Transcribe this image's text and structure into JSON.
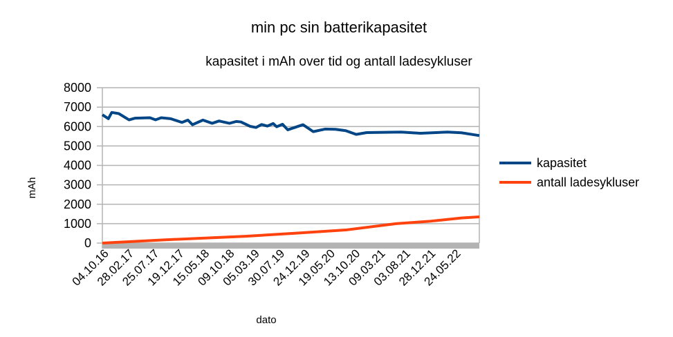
{
  "chart_data": {
    "type": "line",
    "title": "min pc sin batterikapasitet",
    "subtitle": "kapasitet i mAh over tid og antall ladesykluser",
    "xlabel": "dato",
    "ylabel": "mAh",
    "ylim": [
      0,
      8000
    ],
    "yticks": [
      0,
      1000,
      2000,
      3000,
      4000,
      5000,
      6000,
      7000,
      8000
    ],
    "xlim": [
      "2016-10-04",
      "2022-10-17"
    ],
    "xtick_labels": [
      "04.10.16",
      "28.02.17",
      "25.07.17",
      "19.12.17",
      "15.05.18",
      "09.10.18",
      "05.03.19",
      "30.07.19",
      "24.12.19",
      "19.05.20",
      "13.10.20",
      "09.03.21",
      "03.08.21",
      "28.12.21",
      "24.05.22"
    ],
    "grid": true,
    "legend_position": "right",
    "series": [
      {
        "name": "kapasitet",
        "color": "#004586",
        "points": [
          [
            "2016-10-04",
            6607
          ],
          [
            "2016-11-08",
            6405
          ],
          [
            "2016-11-28",
            6726
          ],
          [
            "2017-01-08",
            6667
          ],
          [
            "2017-03-09",
            6345
          ],
          [
            "2017-04-12",
            6429
          ],
          [
            "2017-07-09",
            6452
          ],
          [
            "2017-08-11",
            6345
          ],
          [
            "2017-09-13",
            6452
          ],
          [
            "2017-11-07",
            6405
          ],
          [
            "2018-01-12",
            6214
          ],
          [
            "2018-02-16",
            6333
          ],
          [
            "2018-03-15",
            6095
          ],
          [
            "2018-05-15",
            6333
          ],
          [
            "2018-07-08",
            6167
          ],
          [
            "2018-08-17",
            6286
          ],
          [
            "2018-10-17",
            6167
          ],
          [
            "2018-11-26",
            6262
          ],
          [
            "2018-12-23",
            6238
          ],
          [
            "2019-02-15",
            6012
          ],
          [
            "2019-03-21",
            5952
          ],
          [
            "2019-04-23",
            6107
          ],
          [
            "2019-05-27",
            6024
          ],
          [
            "2019-06-30",
            6155
          ],
          [
            "2019-07-20",
            5988
          ],
          [
            "2019-08-23",
            6119
          ],
          [
            "2019-09-23",
            5833
          ],
          [
            "2019-12-21",
            6095
          ],
          [
            "2020-02-19",
            5738
          ],
          [
            "2020-04-28",
            5869
          ],
          [
            "2020-06-28",
            5857
          ],
          [
            "2020-08-27",
            5786
          ],
          [
            "2020-10-27",
            5595
          ],
          [
            "2020-12-27",
            5690
          ],
          [
            "2021-07-17",
            5714
          ],
          [
            "2021-11-07",
            5655
          ],
          [
            "2022-04-14",
            5714
          ],
          [
            "2022-07-04",
            5679
          ],
          [
            "2022-10-17",
            5536
          ]
        ]
      },
      {
        "name": "antall ladesykluser",
        "color": "#ff420e",
        "points": [
          [
            "2016-10-04",
            0
          ],
          [
            "2017-09-28",
            165
          ],
          [
            "2019-01-20",
            353
          ],
          [
            "2019-11-04",
            506
          ],
          [
            "2020-09-02",
            682
          ],
          [
            "2021-06-17",
            1000
          ],
          [
            "2021-12-25",
            1118
          ],
          [
            "2022-07-05",
            1294
          ],
          [
            "2022-10-17",
            1353
          ]
        ]
      }
    ]
  }
}
